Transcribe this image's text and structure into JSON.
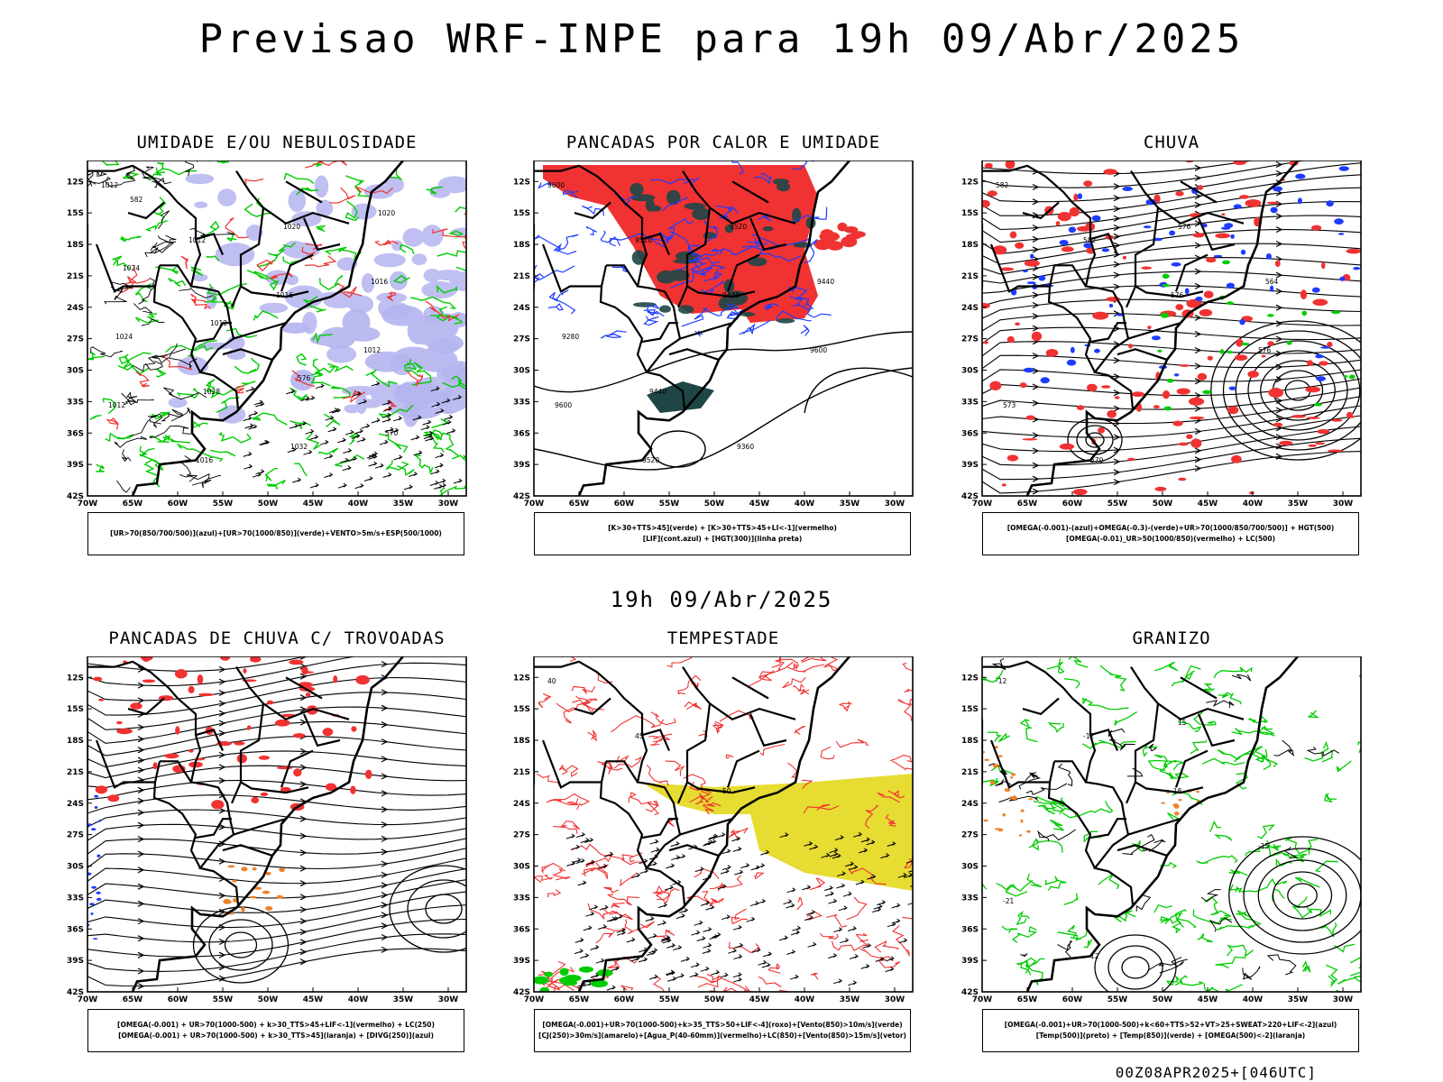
{
  "main_title": "Previsao WRF-INPE  para 19h 09/Abr/2025",
  "mid_title": "19h 09/Abr/2025",
  "footer": "00Z08APR2025+[046UTC]",
  "axes": {
    "lat_labels": [
      "12S",
      "15S",
      "18S",
      "21S",
      "24S",
      "27S",
      "30S",
      "33S",
      "36S",
      "39S",
      "42S"
    ],
    "lon_labels": [
      "70W",
      "65W",
      "60W",
      "55W",
      "50W",
      "45W",
      "40W",
      "35W",
      "30W"
    ]
  },
  "panels": [
    {
      "title": "UMIDADE E/OU NEBULOSIDADE",
      "legend": [
        "[UR>70(850/700/500)](azul)+[UR>70(1000/850)](verde)+VENTO>5m/s+ESP(500/1000)"
      ],
      "contour_labels": [
        "1012",
        "1012",
        "1016",
        "1012",
        "1012",
        "1016",
        "1020",
        "1016",
        "1024",
        "1028",
        "1032",
        "1020",
        "1024",
        "1012",
        "576",
        "570",
        "582"
      ]
    },
    {
      "title": "PANCADAS POR CALOR E UMIDADE",
      "legend": [
        "[K>30+TTS>45](verde) + [K>30+TTS>45+LI<-1](vermelho)",
        "[LIF](cont.azul) + [HGT(300)](linha preta)"
      ],
      "contour_labels": [
        "9600",
        "9520",
        "9440",
        "9600",
        "9600",
        "9520",
        "9520",
        "9440",
        "9280",
        "9440",
        "9360"
      ]
    },
    {
      "title": "CHUVA",
      "legend": [
        "[OMEGA(-0.001)-(azul)+OMEGA(-0.3)-(verde)+UR>70(1000/850/700/500)] + HGT(500)",
        "[OMEGA(-0.01)_UR>50(1000/850)(vermelho) + LC(500)"
      ],
      "contour_labels": [
        "582",
        "582",
        "576",
        "576",
        "573",
        "570",
        "576",
        "564"
      ]
    },
    {
      "title": "PANCADAS DE CHUVA C/ TROVOADAS",
      "legend": [
        "[OMEGA(-0.001) + UR>70(1000-500) + k>30_TTS>45+LIF<-1](vermelho) + LC(250)",
        "[OMEGA(-0.001) + UR>70(1000-500) + k>30_TTS>45](laranja) + [DIVG(250)](azul)"
      ],
      "contour_labels": []
    },
    {
      "title": "TEMPESTADE",
      "legend": [
        "[OMEGA(-0.001)+UR>70(1000-500)+k>35_TTS>50+LIF<-4](roxo)+[Vento(850)>10m/s](verde)",
        "[CJ(250)>30m/s](amarelo)+[Agua_P(40-60mm)](vermelho)+LC(850)+[Vento(850)>15m/s](vetor)"
      ],
      "contour_labels": [
        "40",
        "45",
        "50"
      ]
    },
    {
      "title": "GRANIZO",
      "legend": [
        "[OMEGA(-0.001)+UR>70(1000-500)+k<60+TTS>52+VT>25+SWEAT>220+LIF<-2](azul)",
        "[Temp(500)](preto) + [Temp(850)](verde) + [OMEGA(500)<-2](laranja)"
      ],
      "contour_labels": [
        "-12",
        "-12",
        "-18",
        "-15",
        "-21",
        "12",
        "15"
      ]
    }
  ],
  "colors": {
    "red": "#f03232",
    "green": "#00cc00",
    "blue": "#1e3cff",
    "lavender": "#b4b4f0",
    "yellow": "#e6dc32",
    "orange": "#f08228",
    "teal": "#1e4646"
  }
}
